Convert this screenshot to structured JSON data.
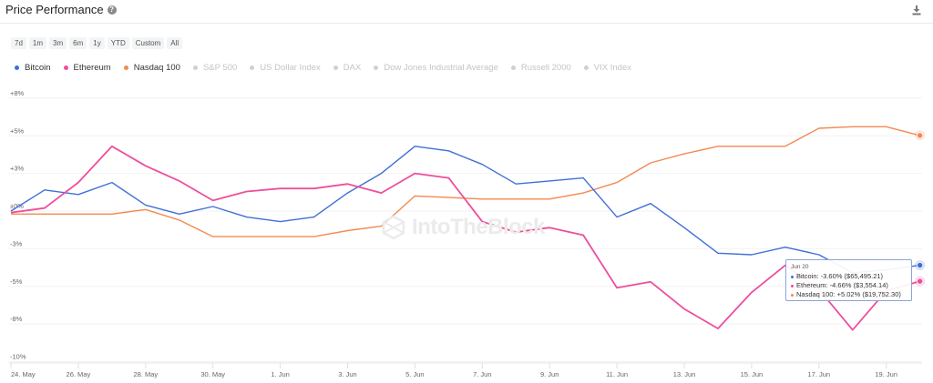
{
  "header": {
    "title": "Price Performance",
    "help_icon": "?",
    "download_icon": "download-icon"
  },
  "ranges": [
    "7d",
    "1m",
    "3m",
    "6m",
    "1y",
    "YTD",
    "Custom",
    "All"
  ],
  "legend": [
    {
      "label": "Bitcoin",
      "color": "#3f6fd8",
      "active": true
    },
    {
      "label": "Ethereum",
      "color": "#ee4e9c",
      "active": true
    },
    {
      "label": "Nasdaq 100",
      "color": "#f28a52",
      "active": true
    },
    {
      "label": "S&P 500",
      "color": "#d0d0d0",
      "active": false
    },
    {
      "label": "US Dollar Index",
      "color": "#d0d0d0",
      "active": false
    },
    {
      "label": "DAX",
      "color": "#d0d0d0",
      "active": false
    },
    {
      "label": "Dow Jones Industrial Average",
      "color": "#d0d0d0",
      "active": false
    },
    {
      "label": "Russell 2000",
      "color": "#d0d0d0",
      "active": false
    },
    {
      "label": "VIX Index",
      "color": "#d0d0d0",
      "active": false
    }
  ],
  "watermark": "IntoTheBlock",
  "tooltip": {
    "date": "Jun 20",
    "rows": [
      {
        "text": "Bitcoin: -3.60% ($65,495.21)",
        "color": "#3f6fd8"
      },
      {
        "text": "Ethereum: -4.66% ($3,554.14)",
        "color": "#ee4e9c"
      },
      {
        "text": "Nasdaq 100: +5.02% ($19,752.30)",
        "color": "#f28a52"
      }
    ]
  },
  "chart_data": {
    "type": "line",
    "title": "Price Performance",
    "xlabel": "",
    "ylabel": "",
    "ylim": [
      -10,
      8
    ],
    "grid": true,
    "legend_position": "top-left",
    "y_ticks": [
      "+8%",
      "+5%",
      "+3%",
      "±0%",
      "-3%",
      "-5%",
      "-8%",
      "-10%"
    ],
    "y_tick_values": [
      7.5,
      5,
      2.5,
      0,
      -2.5,
      -5,
      -7.5,
      -10
    ],
    "x_ticks": [
      "24. May",
      "26. May",
      "28. May",
      "30. May",
      "1. Jun",
      "3. Jun",
      "5. Jun",
      "7. Jun",
      "9. Jun",
      "11. Jun",
      "13. Jun",
      "15. Jun",
      "17. Jun",
      "19. Jun"
    ],
    "x": [
      "May 24",
      "May 25",
      "May 26",
      "May 27",
      "May 28",
      "May 29",
      "May 30",
      "May 31",
      "Jun 1",
      "Jun 2",
      "Jun 3",
      "Jun 4",
      "Jun 5",
      "Jun 6",
      "Jun 7",
      "Jun 8",
      "Jun 9",
      "Jun 10",
      "Jun 11",
      "Jun 12",
      "Jun 13",
      "Jun 14",
      "Jun 15",
      "Jun 16",
      "Jun 17",
      "Jun 18",
      "Jun 19",
      "Jun 20"
    ],
    "series": [
      {
        "name": "Bitcoin",
        "color": "#3f6fd8",
        "values": [
          0.0,
          1.4,
          1.1,
          1.9,
          0.4,
          -0.2,
          0.3,
          -0.4,
          -0.7,
          -0.4,
          1.2,
          2.5,
          4.3,
          4.0,
          3.1,
          1.8,
          2.0,
          2.2,
          -0.4,
          0.5,
          -1.1,
          -2.8,
          -2.9,
          -2.4,
          -2.9,
          -4.1,
          -3.9,
          -3.6
        ]
      },
      {
        "name": "Ethereum",
        "color": "#ee4e9c",
        "values": [
          -0.1,
          0.2,
          1.9,
          4.3,
          3.0,
          2.0,
          0.7,
          1.3,
          1.5,
          1.5,
          1.8,
          1.2,
          2.5,
          2.2,
          -0.7,
          -1.4,
          -1.1,
          -1.6,
          -5.1,
          -4.7,
          -6.5,
          -7.8,
          -5.4,
          -3.6,
          -5.2,
          -7.9,
          -5.3,
          -4.66
        ]
      },
      {
        "name": "Nasdaq 100",
        "color": "#f28a52",
        "values": [
          -0.2,
          -0.2,
          -0.2,
          -0.2,
          0.1,
          -0.6,
          -1.7,
          -1.7,
          -1.7,
          -1.7,
          -1.3,
          -1.0,
          1.0,
          0.9,
          0.8,
          0.8,
          0.8,
          1.2,
          1.9,
          3.2,
          3.8,
          4.3,
          4.3,
          4.3,
          5.5,
          5.6,
          5.6,
          5.02
        ]
      }
    ]
  }
}
